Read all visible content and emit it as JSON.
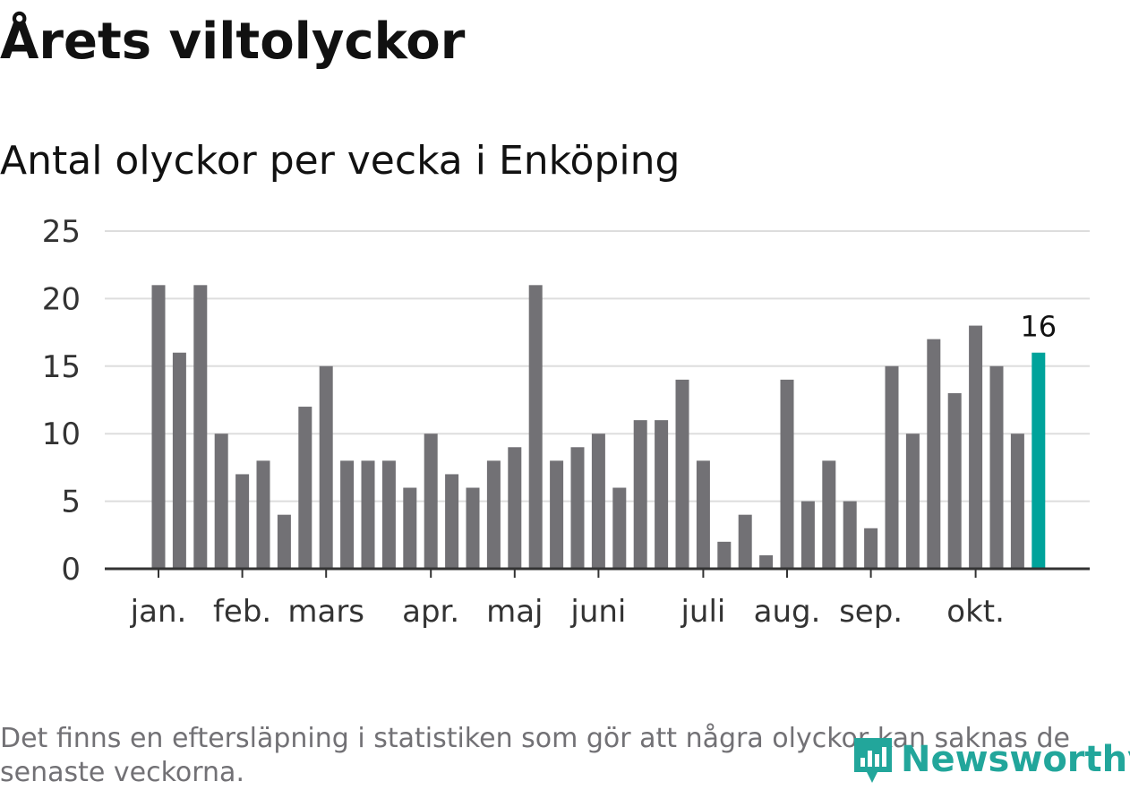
{
  "chart_data": {
    "type": "bar",
    "title": "Årets viltolyckor",
    "subtitle": "Antal olyckor per vecka i Enköping",
    "values": [
      21,
      16,
      21,
      10,
      7,
      8,
      4,
      12,
      15,
      8,
      8,
      8,
      6,
      10,
      7,
      6,
      8,
      9,
      21,
      8,
      9,
      10,
      6,
      11,
      11,
      14,
      8,
      2,
      4,
      1,
      14,
      5,
      8,
      5,
      3,
      15,
      10,
      17,
      13,
      18,
      15,
      10,
      16
    ],
    "month_labels": [
      {
        "label": "jan.",
        "week": 1
      },
      {
        "label": "feb.",
        "week": 5
      },
      {
        "label": "mars",
        "week": 9
      },
      {
        "label": "apr.",
        "week": 14
      },
      {
        "label": "maj",
        "week": 18
      },
      {
        "label": "juni",
        "week": 22
      },
      {
        "label": "juli",
        "week": 27
      },
      {
        "label": "aug.",
        "week": 31
      },
      {
        "label": "sep.",
        "week": 35
      },
      {
        "label": "okt.",
        "week": 40
      }
    ],
    "ylim": [
      0,
      25
    ],
    "yticks": [
      0,
      5,
      10,
      15,
      20,
      25
    ],
    "grid": true,
    "highlight": {
      "index": 42,
      "label": "16"
    },
    "colors": {
      "bar": "#727175",
      "highlight": "#00a39b",
      "grid": "#dddddd",
      "axis": "#333333"
    }
  },
  "footnote": "Det finns en eftersläpning i statistiken som gör att några olyckor kan saknas de senaste veckorna.",
  "logo": {
    "text": "Newsworthy",
    "icon": "bar-chart-icon",
    "color": "#22a69b"
  }
}
